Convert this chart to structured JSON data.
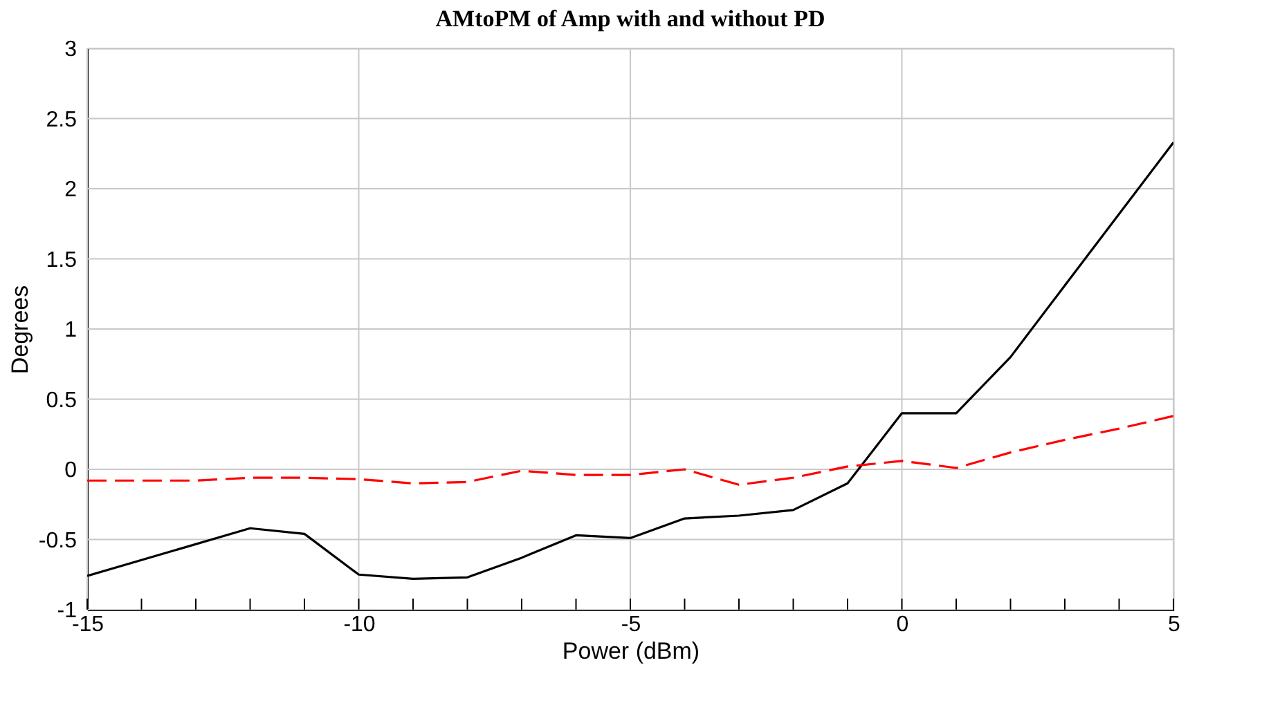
{
  "chart_data": {
    "type": "line",
    "title": "AMtoPM of Amp with and without PD",
    "xlabel": "Power (dBm)",
    "ylabel": "Degrees",
    "x": [
      -15,
      -14,
      -13,
      -12,
      -11,
      -10,
      -9,
      -8,
      -7,
      -6,
      -5,
      -4,
      -3,
      -2,
      -1,
      0,
      1,
      2,
      3,
      4,
      5
    ],
    "series": [
      {
        "color": "#000000",
        "line_style": "solid",
        "x": [
          -15,
          -12,
          -11,
          -10,
          -9,
          -8,
          -7,
          -6,
          -5,
          -4,
          -3,
          -2,
          -1,
          0,
          1,
          2,
          3,
          4,
          5
        ],
        "values": [
          -0.76,
          -0.42,
          -0.46,
          -0.75,
          -0.78,
          -0.77,
          -0.63,
          -0.47,
          -0.49,
          -0.35,
          -0.33,
          -0.29,
          -0.1,
          0.4,
          0.4,
          0.8,
          1.31,
          1.82,
          2.33
        ]
      },
      {
        "color": "#ff0000",
        "line_style": "dashed",
        "values": [
          -0.08,
          -0.08,
          -0.08,
          -0.06,
          -0.06,
          -0.07,
          -0.1,
          -0.09,
          -0.01,
          -0.04,
          -0.04,
          0.0,
          -0.11,
          -0.06,
          0.02,
          0.06,
          0.01,
          0.12,
          0.21,
          0.29,
          0.38
        ]
      }
    ],
    "xlim": [
      -15,
      5
    ],
    "xticks": [
      -15,
      {
        "value": -14,
        "label": null
      },
      {
        "value": -13,
        "label": null
      },
      {
        "value": -12,
        "label": null
      },
      {
        "value": -11,
        "label": null
      },
      -10,
      {
        "value": -9,
        "label": null
      },
      {
        "value": -8,
        "label": null
      },
      {
        "value": -7,
        "label": null
      },
      {
        "value": -6,
        "label": null
      },
      -5,
      {
        "value": -4,
        "label": null
      },
      {
        "value": -3,
        "label": null
      },
      {
        "value": -2,
        "label": null
      },
      {
        "value": -1,
        "label": null
      },
      0,
      {
        "value": 1,
        "label": null
      },
      {
        "value": 2,
        "label": null
      },
      {
        "value": 3,
        "label": null
      },
      {
        "value": 4,
        "label": null
      },
      5
    ],
    "ylim": [
      -1,
      3
    ],
    "yticks": [
      -1,
      -0.5,
      0,
      0.5,
      1,
      1.5,
      2,
      2.5,
      3
    ],
    "grid": true,
    "marker": "none"
  }
}
